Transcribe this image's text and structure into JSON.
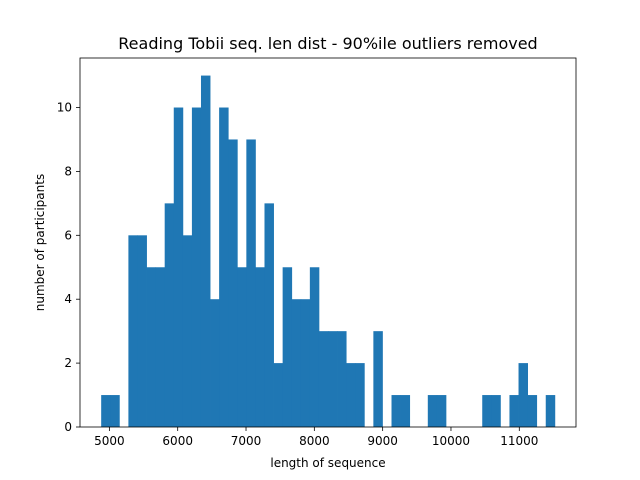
{
  "chart_data": {
    "type": "bar",
    "title": "Reading Tobii seq. len dist - 90%ile outliers removed",
    "xlabel": "length of sequence",
    "ylabel": "number of participants",
    "xlim": [
      4570,
      11830
    ],
    "ylim": [
      0,
      11.55
    ],
    "bin_width": 132.8,
    "bin_edges_start": 4880,
    "values": [
      1,
      1,
      0,
      6,
      6,
      5,
      5,
      7,
      10,
      6,
      10,
      11,
      4,
      10,
      9,
      5,
      9,
      5,
      7,
      2,
      5,
      4,
      4,
      5,
      3,
      3,
      3,
      2,
      2,
      0,
      3,
      0,
      1,
      1,
      0,
      0,
      1,
      1,
      0,
      0,
      0,
      0,
      1,
      1,
      0,
      1,
      2,
      1,
      0,
      1
    ],
    "xticks": [
      5000,
      6000,
      7000,
      8000,
      9000,
      10000,
      11000
    ],
    "yticks": [
      0,
      2,
      4,
      6,
      8,
      10
    ],
    "bar_color": "#1f77b4",
    "grid": false,
    "legend": "none"
  }
}
